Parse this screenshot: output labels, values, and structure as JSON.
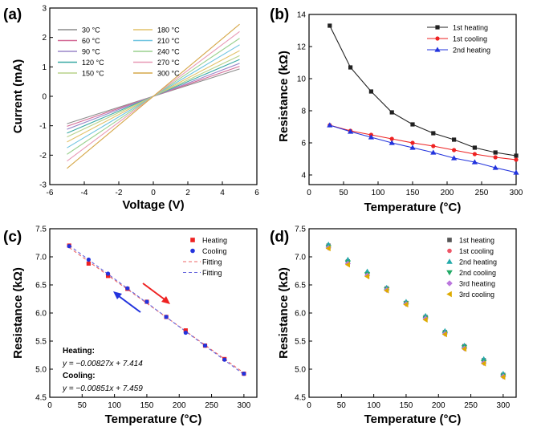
{
  "colors": {
    "black": "#222222",
    "red": "#ee2222",
    "blue": "#2233dd",
    "teal": "#22aaaa",
    "green": "#22aa66",
    "pink": "#ee66aa",
    "violet": "#bb77dd",
    "gold": "#ddaa00",
    "fit_red": "#ee6666",
    "fit_blue": "#6666dd"
  },
  "chart_data": [
    {
      "panel_label": "(a)",
      "type": "line",
      "xlabel": "Voltage (V)",
      "ylabel": "Current (mA)",
      "xlim": [
        -6,
        6
      ],
      "ylim": [
        -3,
        3
      ],
      "xticks": [
        -6,
        -4,
        -2,
        0,
        2,
        4,
        6
      ],
      "yticks": [
        -3,
        -2,
        -1,
        0,
        1,
        2,
        3
      ],
      "xticklabels": [
        "-6",
        "-4",
        "-2",
        "0",
        "2",
        "4",
        "6"
      ],
      "yticklabels": [
        "-3",
        "-2",
        "-1",
        "0",
        "1",
        "2",
        "3"
      ],
      "x": [
        -5,
        5
      ],
      "legend_position": "top-left",
      "series": [
        {
          "name": "30 °C",
          "color": "#8c8c8c",
          "values": [
            -0.93,
            0.93
          ]
        },
        {
          "name": "60 °C",
          "color": "#d46a96",
          "values": [
            -1.02,
            1.02
          ]
        },
        {
          "name": "90 °C",
          "color": "#9a86c8",
          "values": [
            -1.12,
            1.12
          ]
        },
        {
          "name": "120 °C",
          "color": "#3aa9a5",
          "values": [
            -1.25,
            1.25
          ]
        },
        {
          "name": "150 °C",
          "color": "#b8d28a",
          "values": [
            -1.38,
            1.38
          ]
        },
        {
          "name": "180 °C",
          "color": "#e2c26a",
          "values": [
            -1.55,
            1.55
          ]
        },
        {
          "name": "210 °C",
          "color": "#6fc4e0",
          "values": [
            -1.75,
            1.75
          ]
        },
        {
          "name": "240 °C",
          "color": "#9ad08e",
          "values": [
            -1.97,
            1.97
          ]
        },
        {
          "name": "270 °C",
          "color": "#e89ab6",
          "values": [
            -2.2,
            2.2
          ]
        },
        {
          "name": "300 °C",
          "color": "#d6a84a",
          "values": [
            -2.45,
            2.45
          ]
        }
      ]
    },
    {
      "panel_label": "(b)",
      "type": "line",
      "xlabel": "Temperature (°C)",
      "ylabel": "Resistance (kΩ)",
      "xlim": [
        0,
        300
      ],
      "ylim": [
        3.4,
        14
      ],
      "xticks": [
        0,
        50,
        100,
        150,
        200,
        250,
        300
      ],
      "yticks": [
        4,
        6,
        8,
        10,
        12,
        14
      ],
      "xticklabels": [
        "0",
        "50",
        "100",
        "150",
        "200",
        "250",
        "300"
      ],
      "yticklabels": [
        "4",
        "6",
        "8",
        "10",
        "12",
        "14"
      ],
      "x": [
        30,
        60,
        90,
        120,
        150,
        180,
        210,
        240,
        270,
        300
      ],
      "legend_position": "top-right",
      "series": [
        {
          "name": "1st heating",
          "color": "#222222",
          "marker": "square",
          "values": [
            13.3,
            10.7,
            9.2,
            7.9,
            7.15,
            6.6,
            6.2,
            5.7,
            5.4,
            5.2
          ]
        },
        {
          "name": "1st cooling",
          "color": "#ee2222",
          "marker": "circle",
          "values": [
            7.1,
            6.75,
            6.5,
            6.25,
            6.0,
            5.8,
            5.55,
            5.3,
            5.1,
            4.95
          ]
        },
        {
          "name": "2nd heating",
          "color": "#2233dd",
          "marker": "triangle",
          "values": [
            7.1,
            6.7,
            6.35,
            6.0,
            5.7,
            5.4,
            5.05,
            4.8,
            4.45,
            4.15
          ]
        }
      ]
    },
    {
      "panel_label": "(c)",
      "type": "scatter",
      "xlabel": "Temperature (°C)",
      "ylabel": "Resistance (kΩ)",
      "xlim": [
        0,
        320
      ],
      "ylim": [
        4.5,
        7.5
      ],
      "xticks": [
        0,
        50,
        100,
        150,
        200,
        250,
        300
      ],
      "yticks": [
        4.5,
        5.0,
        5.5,
        6.0,
        6.5,
        7.0,
        7.5
      ],
      "xticklabels": [
        "0",
        "50",
        "100",
        "150",
        "200",
        "250",
        "300"
      ],
      "yticklabels": [
        "4.5",
        "5.0",
        "5.5",
        "6.0",
        "6.5",
        "7.0",
        "7.5"
      ],
      "legend_position": "top-right",
      "series": [
        {
          "name": "Heating",
          "color": "#ee2222",
          "marker": "square",
          "x": [
            30,
            60,
            90,
            120,
            150,
            180,
            210,
            240,
            270,
            300
          ],
          "values": [
            7.2,
            6.88,
            6.66,
            6.43,
            6.2,
            5.93,
            5.69,
            5.42,
            5.18,
            4.92
          ]
        },
        {
          "name": "Cooling",
          "color": "#2233dd",
          "marker": "circle",
          "x": [
            30,
            60,
            90,
            120,
            150,
            180,
            210,
            240,
            270,
            300
          ],
          "values": [
            7.19,
            6.95,
            6.7,
            6.44,
            6.2,
            5.93,
            5.65,
            5.42,
            5.17,
            4.92
          ]
        }
      ],
      "fits": [
        {
          "name": "Fitting",
          "color": "#ee6666",
          "slope": -0.00827,
          "intercept": 7.414
        },
        {
          "name": "Fitting",
          "color": "#6666dd",
          "slope": -0.00851,
          "intercept": 7.459
        }
      ],
      "annotations": {
        "heating_label": "Heating:",
        "heating_eq": "y = −0.00827x + 7.414",
        "cooling_label": "Cooling:",
        "cooling_eq": "y = −0.00851x + 7.459"
      }
    },
    {
      "panel_label": "(d)",
      "type": "scatter",
      "xlabel": "Temperature (°C)",
      "ylabel": "Resistance (kΩ)",
      "xlim": [
        0,
        320
      ],
      "ylim": [
        4.5,
        7.5
      ],
      "xticks": [
        0,
        50,
        100,
        150,
        200,
        250,
        300
      ],
      "yticks": [
        4.5,
        5.0,
        5.5,
        6.0,
        6.5,
        7.0,
        7.5
      ],
      "xticklabels": [
        "0",
        "50",
        "100",
        "150",
        "200",
        "250",
        "300"
      ],
      "yticklabels": [
        "4.5",
        "5.0",
        "5.5",
        "6.0",
        "6.5",
        "7.0",
        "7.5"
      ],
      "x": [
        30,
        60,
        90,
        120,
        150,
        180,
        210,
        240,
        270,
        300
      ],
      "legend_position": "top-right",
      "series": [
        {
          "name": "1st heating",
          "color": "#555555",
          "marker": "square",
          "values": [
            7.2,
            6.92,
            6.7,
            6.44,
            6.18,
            5.93,
            5.66,
            5.41,
            5.16,
            4.9
          ]
        },
        {
          "name": "1st cooling",
          "color": "#ee5566",
          "marker": "circle",
          "values": [
            7.18,
            6.93,
            6.7,
            6.44,
            6.18,
            5.92,
            5.66,
            5.4,
            5.14,
            4.88
          ]
        },
        {
          "name": "2nd heating",
          "color": "#22aaaa",
          "marker": "triangle",
          "values": [
            7.22,
            6.95,
            6.74,
            6.45,
            6.2,
            5.95,
            5.68,
            5.42,
            5.18,
            4.92
          ]
        },
        {
          "name": "2nd cooling",
          "color": "#22aa66",
          "marker": "triangle-down",
          "values": [
            7.17,
            6.9,
            6.69,
            6.42,
            6.17,
            5.91,
            5.64,
            5.39,
            5.13,
            4.88
          ]
        },
        {
          "name": "3rd heating",
          "color": "#bb77dd",
          "marker": "diamond",
          "values": [
            7.16,
            6.88,
            6.67,
            6.41,
            6.16,
            5.9,
            5.63,
            5.37,
            5.11,
            4.87
          ]
        },
        {
          "name": "3rd cooling",
          "color": "#ddaa00",
          "marker": "left-triangle",
          "values": [
            7.15,
            6.86,
            6.65,
            6.4,
            6.15,
            5.88,
            5.62,
            5.36,
            5.1,
            4.86
          ]
        }
      ]
    }
  ]
}
